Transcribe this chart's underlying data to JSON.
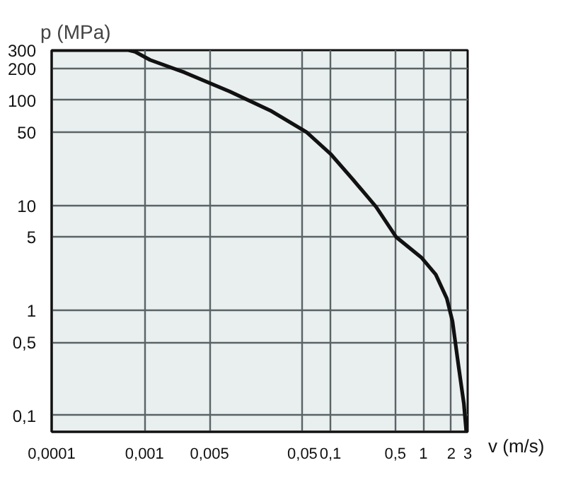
{
  "chart_data": {
    "type": "line",
    "xlabel": "v (m/s)",
    "ylabel": "p (MPa)",
    "log": "xy",
    "grid": true,
    "xlim": [
      0.0001,
      3
    ],
    "ylim": [
      0.07,
      300
    ],
    "xticks": [
      {
        "value": 0.0001,
        "label": "0,0001"
      },
      {
        "value": 0.005,
        "label": "0,005"
      },
      {
        "value": 0.001,
        "label": "0,001"
      },
      {
        "value": 0.05,
        "label": "0,05"
      },
      {
        "value": 0.1,
        "label": "0,1"
      },
      {
        "value": 0.5,
        "label": "0,5"
      },
      1,
      2,
      3
    ],
    "yticks": [
      {
        "value": 0.1,
        "label": "0,1"
      },
      {
        "value": 0.5,
        "label": "0,5"
      },
      1,
      5,
      10,
      50,
      100,
      200,
      300
    ],
    "series": [
      {
        "color": "#111111",
        "x": [
          0.0001,
          0.00067,
          0.00079,
          0.00115,
          0.0027,
          0.0083,
          0.0225,
          0.055,
          0.1,
          0.176,
          0.31,
          0.51,
          0.95,
          1.36,
          1.79,
          2.06,
          2.4,
          2.73,
          2.9
        ],
        "values": [
          300,
          300,
          290,
          242,
          184,
          121,
          80,
          50,
          31,
          17.5,
          9.7,
          5,
          3.2,
          2.2,
          1.3,
          0.79,
          0.29,
          0.13,
          0.07
        ]
      }
    ]
  }
}
